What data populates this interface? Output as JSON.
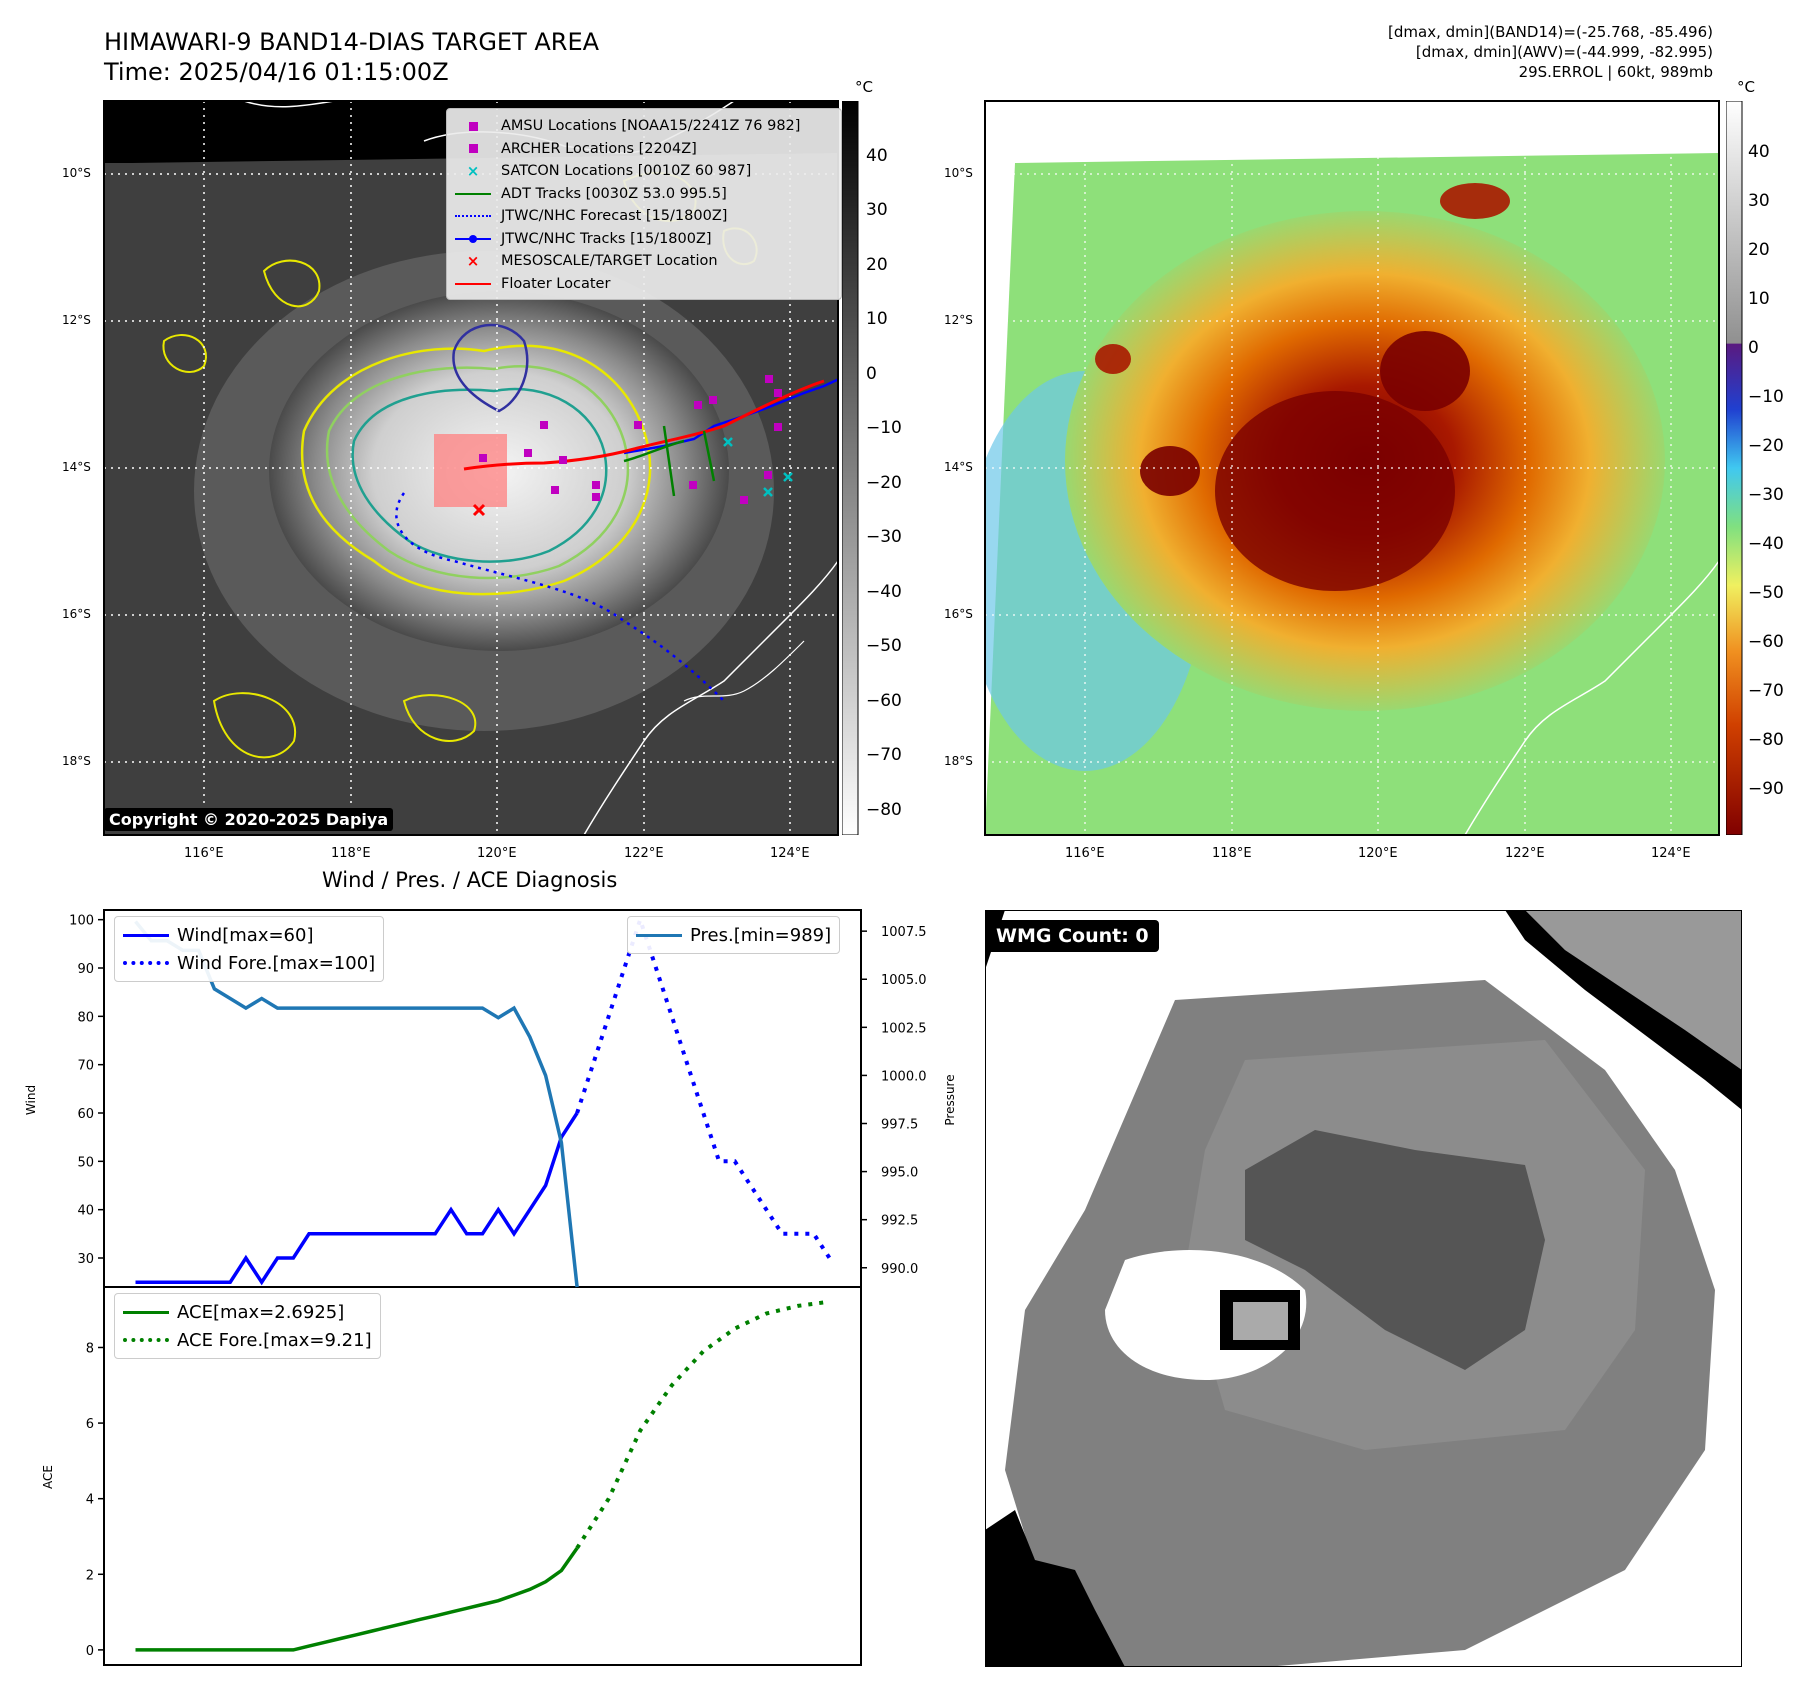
{
  "header": {
    "title_line1": "HIMAWARI-9 BAND14-DIAS TARGET AREA",
    "title_line2": "Time: 2025/04/16 01:15:00Z",
    "info_line1": "[dmax, dmin](BAND14)=(-25.768, -85.496)",
    "info_line2": "[dmax, dmin](AWV)=(-44.999, -82.995)",
    "info_line3": "29S.ERROL | 60kt, 989mb"
  },
  "map": {
    "lon_ticks": [
      "116°E",
      "118°E",
      "120°E",
      "122°E",
      "124°E"
    ],
    "lat_ticks": [
      "10°S",
      "12°S",
      "14°S",
      "16°S",
      "18°S"
    ],
    "copyright": "Copyright © 2020-2025 Dapiya",
    "colorbar_unit": "°C",
    "colorbar_left_ticks": [
      "40",
      "30",
      "20",
      "10",
      "0",
      "−10",
      "−20",
      "−30",
      "−40",
      "−50",
      "−60",
      "−70",
      "−80"
    ],
    "colorbar_right_ticks": [
      "40",
      "30",
      "20",
      "10",
      "0",
      "−10",
      "−20",
      "−30",
      "−40",
      "−50",
      "−60",
      "−70",
      "−80",
      "−90"
    ],
    "legend": [
      {
        "label": "AMSU Locations [NOAA15/2241Z 76 982]",
        "marker": "square",
        "color": "#c000c0"
      },
      {
        "label": "ARCHER Locations [2204Z]",
        "marker": "square",
        "color": "#c000c0"
      },
      {
        "label": "SATCON Locations [0010Z 60 987]",
        "marker": "x",
        "color": "#00c0c0"
      },
      {
        "label": "ADT Tracks [0030Z 53.0 995.5]",
        "marker": "line",
        "color": "#008000"
      },
      {
        "label": "JTWC/NHC Forecast [15/1800Z]",
        "marker": "dotted",
        "color": "#0000ff"
      },
      {
        "label": "JTWC/NHC Tracks [15/1800Z]",
        "marker": "line-dot",
        "color": "#0000ff"
      },
      {
        "label": "MESOSCALE/TARGET Location",
        "marker": "x",
        "color": "#ff0000"
      },
      {
        "label": "Floater Locater",
        "marker": "line",
        "color": "#ff0000"
      }
    ],
    "colors": {
      "adt": "#008000",
      "jtwc": "#0000ff",
      "floater": "#ff0000",
      "amsu": "#c000c0",
      "satcon": "#00c0c0"
    }
  },
  "diagnosis": {
    "title": "Wind / Pres. / ACE Diagnosis",
    "wind_ylabel": "Wind",
    "pres_ylabel": "Pressure",
    "ace_ylabel": "ACE",
    "legend_wind": "Wind[max=60]",
    "legend_wind_fore": "Wind Fore.[max=100]",
    "legend_pres": "Pres.[min=989]",
    "legend_ace": "ACE[max=2.6925]",
    "legend_ace_fore": "ACE Fore.[max=9.21]",
    "wind_ticks": [
      "100",
      "90",
      "80",
      "70",
      "60",
      "50",
      "40",
      "30"
    ],
    "pres_ticks": [
      "1007.5",
      "1005.0",
      "1002.5",
      "1000.0",
      "997.5",
      "995.0",
      "992.5",
      "990.0"
    ],
    "ace_ticks": [
      "8",
      "6",
      "4",
      "2",
      "0"
    ]
  },
  "chart_data": [
    {
      "type": "line",
      "x": [
        0,
        1,
        2,
        3,
        4,
        5,
        6,
        7,
        8,
        9,
        10,
        11,
        12,
        13,
        14,
        15,
        16,
        17,
        18,
        19,
        20,
        21,
        22,
        23,
        24,
        25,
        26,
        27,
        28
      ],
      "series": [
        {
          "name": "Wind[max=60]",
          "axis": "left",
          "values": [
            25,
            25,
            25,
            25,
            25,
            25,
            25,
            30,
            25,
            30,
            30,
            35,
            35,
            35,
            35,
            35,
            35,
            35,
            35,
            35,
            40,
            35,
            35,
            40,
            35,
            40,
            45,
            55,
            60
          ]
        },
        {
          "name": "Pres.[min=989]",
          "axis": "right",
          "values": [
            1008,
            1007,
            1007,
            1006.5,
            1006.5,
            1004.5,
            1004,
            1003.5,
            1004,
            1003.5,
            1003.5,
            1003.5,
            1003.5,
            1003.5,
            1003.5,
            1003.5,
            1003.5,
            1003.5,
            1003.5,
            1003.5,
            1003.5,
            1003.5,
            1003.5,
            1003,
            1003.5,
            1002,
            1000,
            996.5,
            989
          ]
        }
      ],
      "forecast_x": [
        28,
        29,
        30,
        31,
        32,
        33,
        34,
        35,
        36,
        37,
        38,
        39,
        40,
        41,
        42,
        43,
        44
      ],
      "forecast_series": [
        {
          "name": "Wind Fore.[max=100]",
          "axis": "left",
          "values": [
            60,
            70,
            80,
            90,
            100,
            90,
            80,
            70,
            60,
            50,
            50,
            45,
            40,
            35,
            35,
            35,
            30
          ]
        }
      ],
      "ylim": [
        24,
        102
      ],
      "ylim_right": [
        989,
        1008.6
      ],
      "ylabel": "Wind",
      "ylabel_right": "Pressure"
    },
    {
      "type": "line",
      "x": [
        0,
        1,
        2,
        3,
        4,
        5,
        6,
        7,
        8,
        9,
        10,
        11,
        12,
        13,
        14,
        15,
        16,
        17,
        18,
        19,
        20,
        21,
        22,
        23,
        24,
        25,
        26,
        27,
        28
      ],
      "series": [
        {
          "name": "ACE[max=2.6925]",
          "values": [
            0,
            0,
            0,
            0,
            0,
            0,
            0,
            0,
            0,
            0,
            0,
            0.1,
            0.2,
            0.3,
            0.4,
            0.5,
            0.6,
            0.7,
            0.8,
            0.9,
            1.0,
            1.1,
            1.2,
            1.3,
            1.45,
            1.6,
            1.8,
            2.1,
            2.6925
          ]
        }
      ],
      "forecast_x": [
        28,
        30,
        32,
        34,
        36,
        38,
        40,
        42,
        44
      ],
      "forecast_series": [
        {
          "name": "ACE Fore.[max=9.21]",
          "values": [
            2.6925,
            4.0,
            5.8,
            7.0,
            7.9,
            8.5,
            8.9,
            9.1,
            9.21
          ]
        }
      ],
      "ylim": [
        -0.4,
        9.6
      ],
      "ylabel": "ACE"
    }
  ],
  "wmg": {
    "label": "WMG Count: 0"
  }
}
